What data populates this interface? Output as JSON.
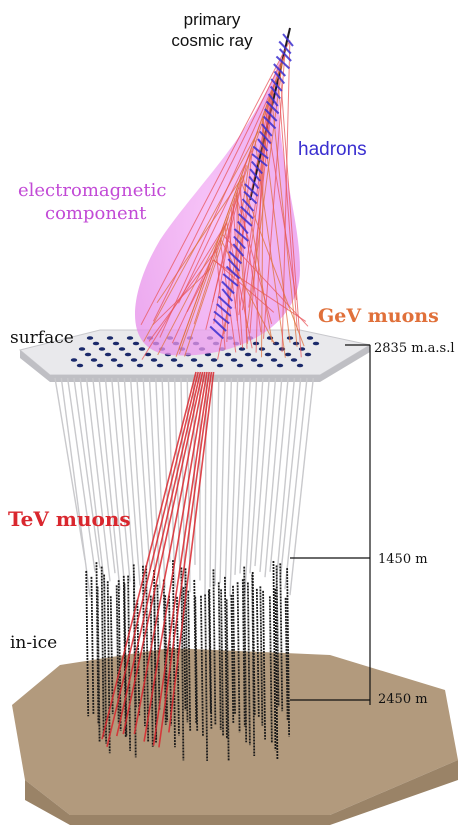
{
  "labels": {
    "primary": "primary",
    "cosmic_ray": "cosmic ray",
    "hadrons": "hadrons",
    "em_line1": "electromagnetic",
    "em_line2": "component",
    "gev_muons": "GeV muons",
    "surface": "surface",
    "tev_muons": "TeV muons",
    "in_ice": "in-ice",
    "elev_surface": "2835 m.a.s.l",
    "depth_top": "1450 m",
    "depth_bottom": "2450 m"
  },
  "colors": {
    "hadrons": "#3a2fd0",
    "em_cloud": "#e79cf0",
    "em_text": "#c24ad6",
    "gev_muons": "#e0703a",
    "tev_muons": "#d9272e",
    "surface_plate": "#e6e6e8",
    "bedrock": "#b59f84",
    "strings": "#1a1a1a",
    "dom_dots": "#1b2a6b"
  }
}
